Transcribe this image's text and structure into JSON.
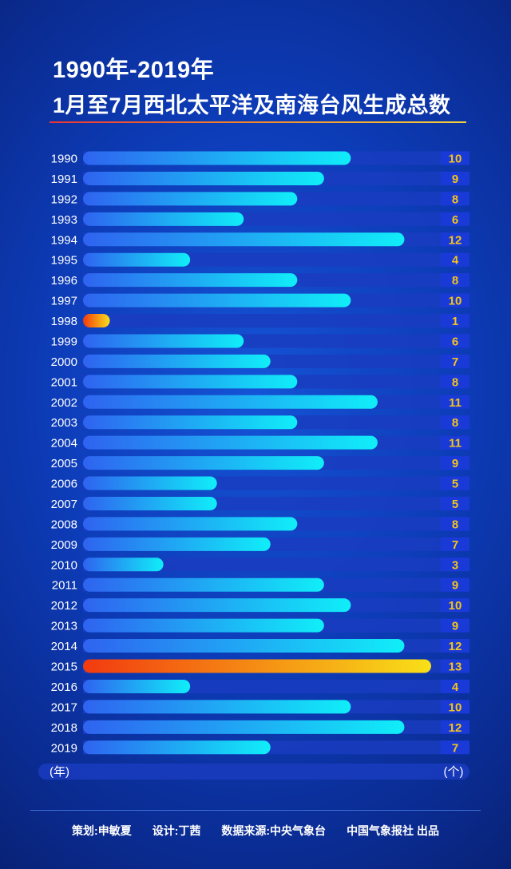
{
  "title_line1": "1990年-2019年",
  "title_line2": "1月至7月西北太平洋及南海台风生成总数",
  "axis": {
    "x_unit": "(年)",
    "y_unit": "(个)"
  },
  "chart_data": {
    "type": "bar",
    "orientation": "horizontal",
    "categories": [
      "1990",
      "1991",
      "1992",
      "1993",
      "1994",
      "1995",
      "1996",
      "1997",
      "1998",
      "1999",
      "2000",
      "2001",
      "2002",
      "2003",
      "2004",
      "2005",
      "2006",
      "2007",
      "2008",
      "2009",
      "2010",
      "2011",
      "2012",
      "2013",
      "2014",
      "2015",
      "2016",
      "2017",
      "2018",
      "2019"
    ],
    "values": [
      10,
      9,
      8,
      6,
      12,
      4,
      8,
      10,
      1,
      6,
      7,
      8,
      11,
      8,
      11,
      9,
      5,
      5,
      8,
      7,
      3,
      9,
      10,
      9,
      12,
      13,
      4,
      10,
      12,
      7
    ],
    "xlim": [
      0,
      13
    ],
    "highlight_categories": [
      "1998",
      "2015"
    ]
  },
  "colors": {
    "bar_normal_start": "#2f63f0",
    "bar_normal_end": "#10eef8",
    "bar_highlight_start": "#f23a10",
    "bar_highlight_end": "#f8e018",
    "value_text": "#f5c518",
    "track": "#1a3cc0",
    "value_box": "#1a3ad8"
  },
  "footer": {
    "planner": "策划:申敏夏",
    "designer": "设计:丁茜",
    "source": "数据来源:中央气象台",
    "publisher": "中国气象报社 出品"
  }
}
